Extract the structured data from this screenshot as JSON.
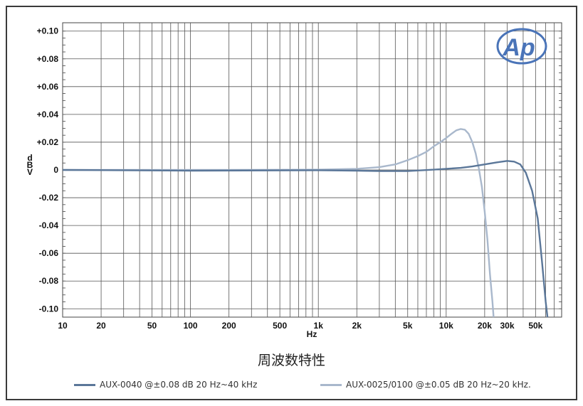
{
  "chart_data": {
    "type": "line",
    "title": "",
    "xlabel": "Hz",
    "ylabel": "dBV",
    "caption": "周波数特性",
    "x_scale": "log",
    "xlim": [
      10,
      80000
    ],
    "ylim": [
      -0.106,
      0.106
    ],
    "grid": true,
    "legend_position": "bottom",
    "x_ticks": [
      {
        "value": 10,
        "label": "10"
      },
      {
        "value": 20,
        "label": "20"
      },
      {
        "value": 50,
        "label": "50"
      },
      {
        "value": 100,
        "label": "100"
      },
      {
        "value": 200,
        "label": "200"
      },
      {
        "value": 500,
        "label": "500"
      },
      {
        "value": 1000,
        "label": "1k"
      },
      {
        "value": 2000,
        "label": "2k"
      },
      {
        "value": 5000,
        "label": "5k"
      },
      {
        "value": 10000,
        "label": "10k"
      },
      {
        "value": 20000,
        "label": "20k"
      },
      {
        "value": 30000,
        "label": "30k"
      },
      {
        "value": 50000,
        "label": "50k"
      }
    ],
    "y_ticks": [
      {
        "value": 0.1,
        "label": "+0.10"
      },
      {
        "value": 0.08,
        "label": "+0.08"
      },
      {
        "value": 0.06,
        "label": "+0.06"
      },
      {
        "value": 0.04,
        "label": "+0.04"
      },
      {
        "value": 0.02,
        "label": "+0.02"
      },
      {
        "value": 0,
        "label": "0"
      },
      {
        "value": -0.02,
        "label": "-0.02"
      },
      {
        "value": -0.04,
        "label": "-0.04"
      },
      {
        "value": -0.06,
        "label": "-0.06"
      },
      {
        "value": -0.08,
        "label": "-0.08"
      },
      {
        "value": -0.1,
        "label": "-0.10"
      }
    ],
    "series": [
      {
        "name": "AUX-0040 @±0.08 dB 20 Hz~40 kHz",
        "color": "#5b7799",
        "points": [
          [
            10,
            0
          ],
          [
            100,
            -0.0005
          ],
          [
            1000,
            -0.0002
          ],
          [
            2000,
            -0.0005
          ],
          [
            3000,
            -0.0008
          ],
          [
            5000,
            -0.0008
          ],
          [
            8000,
            0.0002
          ],
          [
            10000,
            0.0008
          ],
          [
            13000,
            0.0015
          ],
          [
            16000,
            0.0025
          ],
          [
            20000,
            0.004
          ],
          [
            25000,
            0.0055
          ],
          [
            30000,
            0.0065
          ],
          [
            34000,
            0.006
          ],
          [
            38000,
            0.004
          ],
          [
            42000,
            -0.002
          ],
          [
            47000,
            -0.015
          ],
          [
            52000,
            -0.035
          ],
          [
            56000,
            -0.065
          ],
          [
            60000,
            -0.095
          ],
          [
            62000,
            -0.106
          ]
        ]
      },
      {
        "name": "AUX-0025/0100 @±0.05 dB 20 Hz~20 kHz.",
        "color": "#a9b8cc",
        "points": [
          [
            10,
            0
          ],
          [
            200,
            0
          ],
          [
            1000,
            0.0002
          ],
          [
            2000,
            0.0008
          ],
          [
            3000,
            0.002
          ],
          [
            4000,
            0.004
          ],
          [
            5000,
            0.007
          ],
          [
            6000,
            0.01
          ],
          [
            7000,
            0.013
          ],
          [
            8000,
            0.017
          ],
          [
            9000,
            0.02
          ],
          [
            10000,
            0.023
          ],
          [
            11000,
            0.026
          ],
          [
            12000,
            0.0285
          ],
          [
            13000,
            0.0295
          ],
          [
            14000,
            0.029
          ],
          [
            15000,
            0.026
          ],
          [
            16000,
            0.02
          ],
          [
            17000,
            0.012
          ],
          [
            18000,
            0.001
          ],
          [
            19000,
            -0.012
          ],
          [
            20000,
            -0.03
          ],
          [
            21000,
            -0.05
          ],
          [
            22000,
            -0.075
          ],
          [
            23000,
            -0.095
          ],
          [
            23500,
            -0.106
          ]
        ]
      }
    ]
  },
  "logo": {
    "text": "Ap",
    "color": "#4a74b8"
  }
}
